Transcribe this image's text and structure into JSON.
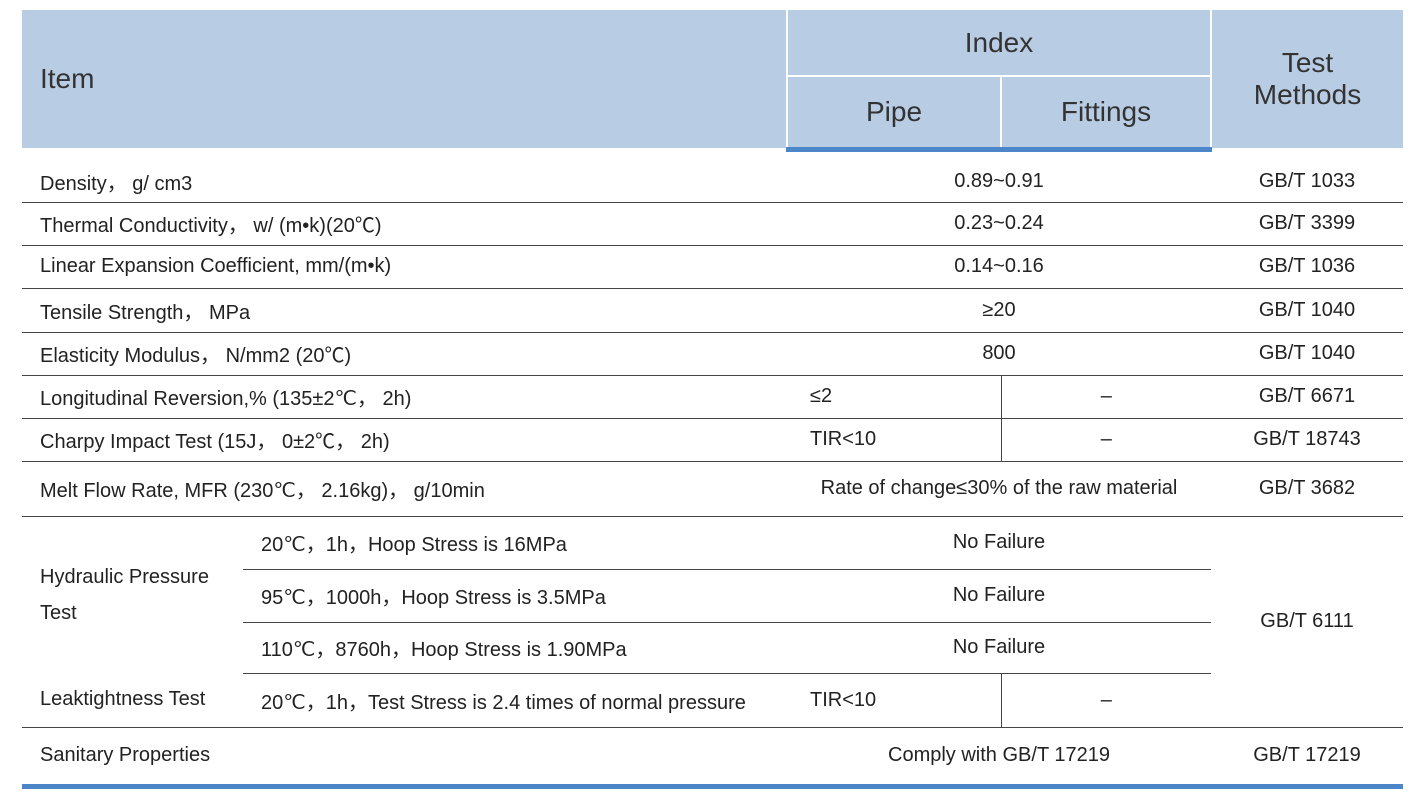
{
  "header": {
    "item": "Item",
    "index": "Index",
    "pipe": "Pipe",
    "fittings": "Fittings",
    "test_methods": "Test Methods"
  },
  "rows": [
    {
      "item": "Density， g/ cm3",
      "index": "0.89~0.91",
      "test_method": "GB/T 1033"
    },
    {
      "item": "Thermal Conductivity， w/ (m•k)(20℃)",
      "index": "0.23~0.24",
      "test_method": "GB/T 3399"
    },
    {
      "item": "Linear Expansion Coefficient, mm/(m•k)",
      "index": "0.14~0.16",
      "test_method": "GB/T 1036"
    },
    {
      "item": "Tensile Strength， MPa",
      "index": "≥20",
      "test_method": "GB/T 1040"
    },
    {
      "item": "Elasticity Modulus， N/mm2 (20℃)",
      "index": "800",
      "test_method": "GB/T 1040"
    },
    {
      "item": "Longitudinal Reversion,% (135±2℃， 2h)",
      "pipe": "≤2",
      "fittings": "–",
      "test_method": "GB/T 6671"
    },
    {
      "item": "Charpy Impact Test (15J， 0±2℃， 2h)",
      "pipe": "TIR<10",
      "fittings": "–",
      "test_method": "GB/T 18743"
    },
    {
      "item": "Melt Flow Rate, MFR (230℃， 2.16kg)， g/10min",
      "index": "Rate of change≤30% of the raw material",
      "test_method": "GB/T 3682"
    }
  ],
  "hydraulic": {
    "item": "Hydraulic Pressure Test",
    "conditions": [
      {
        "condition": "20℃，1h，Hoop Stress is 16MPa",
        "index": "No Failure"
      },
      {
        "condition": "95℃，1000h，Hoop Stress is 3.5MPa",
        "index": "No Failure"
      },
      {
        "condition": "110℃，8760h，Hoop Stress is 1.90MPa",
        "index": "No Failure"
      }
    ],
    "test_method": "GB/T 6111"
  },
  "leaktightness": {
    "item": "Leaktightness Test",
    "condition": "20℃，1h，Test Stress is 2.4 times of normal pressure",
    "pipe": "TIR<10",
    "fittings": "–"
  },
  "sanitary": {
    "item": "Sanitary Properties",
    "index": "Comply with GB/T 17219",
    "test_method": "GB/T 17219"
  }
}
